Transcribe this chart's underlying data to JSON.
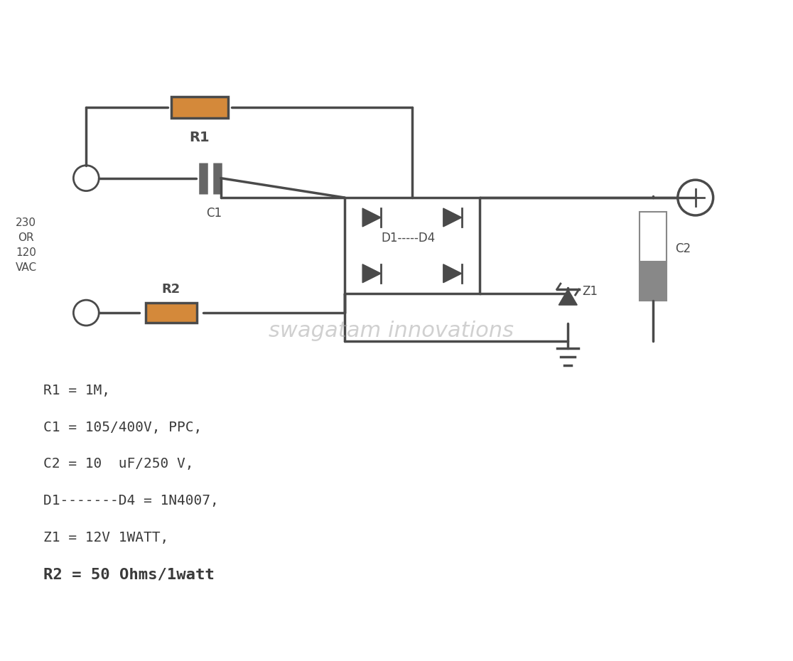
{
  "bg_color": "#ffffff",
  "line_color": "#4a4a4a",
  "resistor_color": "#d4893a",
  "component_lw": 2.5,
  "wire_lw": 2.5,
  "title": "",
  "watermark": "swagatam innovations",
  "bom_lines": [
    "R1 = 1M,",
    "C1 = 105/400V, PPC,",
    "C2 = 10  uF/250 V,",
    "D1-------D4 = 1N4007,",
    "Z1 = 12V 1WATT,",
    "R2 = 50 Ohms/1watt"
  ],
  "vac_label": "230\nOR\n120\nVAC"
}
